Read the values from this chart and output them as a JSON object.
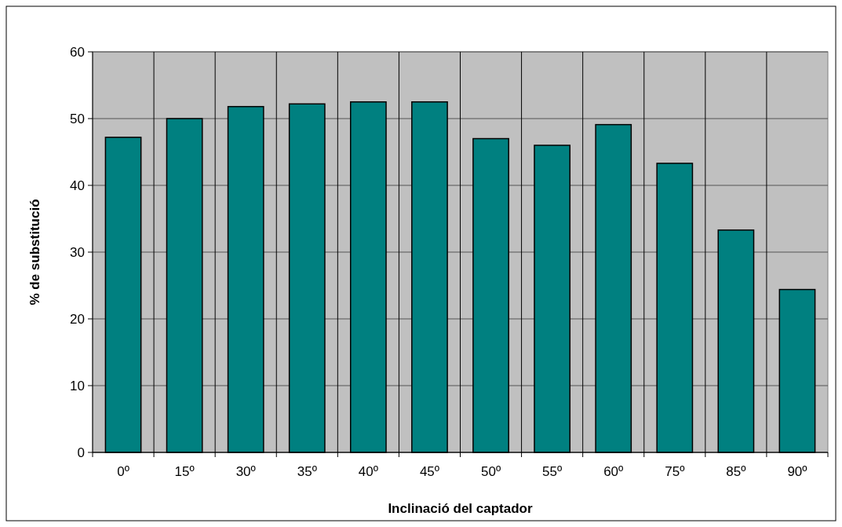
{
  "chart_data": {
    "type": "bar",
    "xlabel": "Inclinació del captador",
    "ylabel": "% de substitució",
    "categories": [
      "0º",
      "15º",
      "30º",
      "35º",
      "40º",
      "45º",
      "50º",
      "55º",
      "60º",
      "75º",
      "85º",
      "90º"
    ],
    "values": [
      47.2,
      50.0,
      51.8,
      52.2,
      52.5,
      52.5,
      47.0,
      46.0,
      49.1,
      43.3,
      33.3,
      24.4
    ],
    "color": "#008080",
    "ylim": [
      0,
      60
    ],
    "yticks": [
      0,
      10,
      20,
      30,
      40,
      50,
      60
    ],
    "grid": true
  }
}
